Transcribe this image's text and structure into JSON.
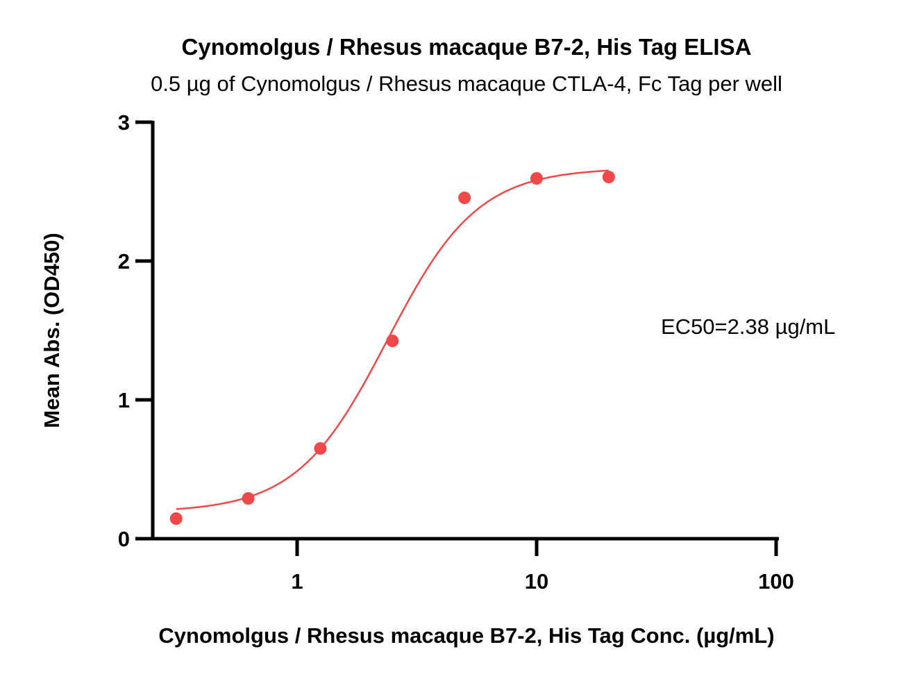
{
  "chart_data": {
    "type": "scatter",
    "title": "Cynomolgus / Rhesus macaque B7-2, His Tag ELISA",
    "subtitle": "0.5 µg of Cynomolgus / Rhesus macaque CTLA-4, Fc Tag per well",
    "xlabel": "Cynomolgus / Rhesus macaque B7-2, His Tag Conc. (µg/mL)",
    "ylabel": "Mean Abs. (OD450)",
    "x_scale": "log",
    "xlim": [
      0.2,
      100
    ],
    "ylim": [
      0,
      3
    ],
    "x_ticks": [
      1,
      10,
      100
    ],
    "x_tick_labels": [
      "1",
      "10",
      "100"
    ],
    "y_ticks": [
      0,
      1,
      2,
      3
    ],
    "y_tick_labels": [
      "0",
      "1",
      "2",
      "3"
    ],
    "grid": false,
    "series": [
      {
        "x": [
          0.3125,
          0.625,
          1.25,
          2.5,
          5,
          10,
          20
        ],
        "y": [
          0.145,
          0.29,
          0.65,
          1.425,
          2.455,
          2.595,
          2.605
        ],
        "color": "#f04848"
      }
    ],
    "fit_curve": {
      "model": "4PL",
      "bottom": 0.19,
      "top": 2.67,
      "ec50": 2.38,
      "hill": 2.3,
      "x_range": [
        0.3125,
        20
      ],
      "color": "#f04848"
    },
    "annotations": [
      {
        "text": "EC50=2.38 µg/mL"
      }
    ]
  }
}
